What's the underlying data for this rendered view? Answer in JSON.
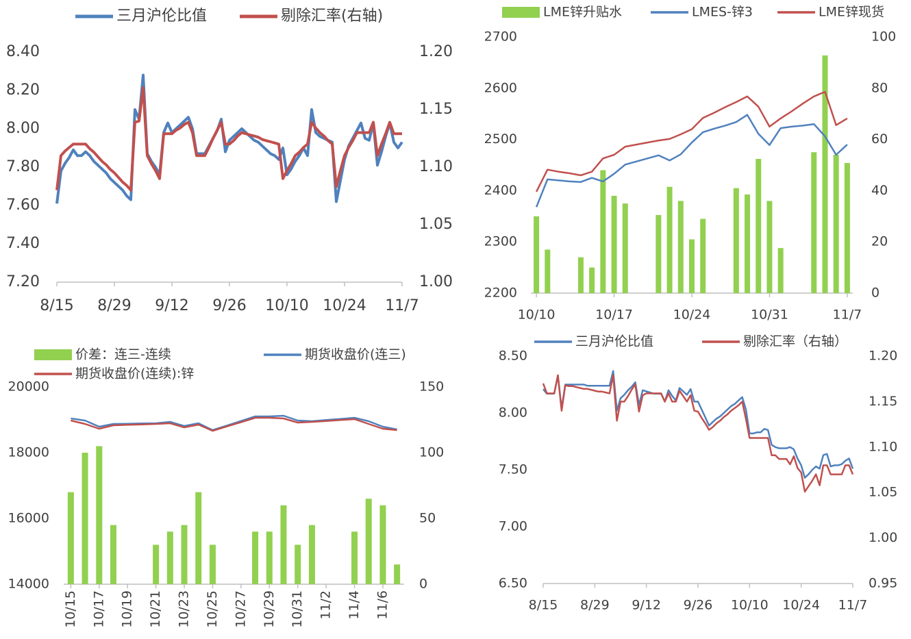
{
  "chart_data": [
    {
      "type": "line",
      "categories": [
        "8/15",
        null,
        null,
        null,
        null,
        null,
        null,
        null,
        null,
        null,
        null,
        null,
        null,
        null,
        "8/29",
        null,
        null,
        null,
        null,
        null,
        null,
        null,
        null,
        null,
        null,
        null,
        null,
        null,
        "9/12",
        null,
        null,
        null,
        null,
        null,
        null,
        null,
        null,
        null,
        null,
        null,
        null,
        null,
        "9/26",
        null,
        null,
        null,
        null,
        null,
        null,
        null,
        null,
        null,
        null,
        null,
        null,
        null,
        "10/10",
        null,
        null,
        null,
        null,
        null,
        null,
        null,
        null,
        null,
        null,
        null,
        null,
        null,
        "10/24",
        null,
        null,
        null,
        null,
        null,
        null,
        null,
        null,
        null,
        null,
        null,
        null,
        null,
        "11/7"
      ],
      "series": [
        {
          "name": "三月沪伦比值",
          "color": "#4f81bd",
          "type": "line",
          "values": [
            7.61,
            7.78,
            7.82,
            7.85,
            7.89,
            7.86,
            7.86,
            7.88,
            7.86,
            7.83,
            7.81,
            7.79,
            7.77,
            7.74,
            7.72,
            7.7,
            7.68,
            7.65,
            7.63,
            8.1,
            8.05,
            8.28,
            7.87,
            7.83,
            7.8,
            7.76,
            7.98,
            8.03,
            7.98,
            8.0,
            8.02,
            8.04,
            8.06,
            8.0,
            7.87,
            7.87,
            7.87,
            7.91,
            7.95,
            7.99,
            8.05,
            7.88,
            7.94,
            7.96,
            7.98,
            8.0,
            7.98,
            7.96,
            7.94,
            7.93,
            7.91,
            7.89,
            7.87,
            7.86,
            7.84,
            7.9,
            7.76,
            7.79,
            7.83,
            7.86,
            7.9,
            7.86,
            8.1,
            7.98,
            7.96,
            7.95,
            7.94,
            7.93,
            7.62,
            7.73,
            7.84,
            7.91,
            7.95,
            7.99,
            8.03,
            7.95,
            7.94,
            8.03,
            7.81,
            7.88,
            7.96,
            8.03,
            7.93,
            7.9,
            7.93
          ]
        },
        {
          "name": "剔除汇率(右轴)",
          "color": "#c0504d",
          "type": "line",
          "axis": "y2",
          "values": [
            1.08,
            1.11,
            1.114,
            1.117,
            1.12,
            1.12,
            1.12,
            1.12,
            1.116,
            1.113,
            1.109,
            1.105,
            1.102,
            1.098,
            1.095,
            1.091,
            1.087,
            1.084,
            1.08,
            1.139,
            1.14,
            1.169,
            1.11,
            1.103,
            1.097,
            1.09,
            1.129,
            1.129,
            1.129,
            1.132,
            1.134,
            1.137,
            1.139,
            1.13,
            1.11,
            1.11,
            1.11,
            1.117,
            1.125,
            1.132,
            1.139,
            1.12,
            1.12,
            1.123,
            1.127,
            1.13,
            1.129,
            1.128,
            1.127,
            1.126,
            1.124,
            1.123,
            1.122,
            1.121,
            1.12,
            1.09,
            1.097,
            1.103,
            1.11,
            1.113,
            1.117,
            1.12,
            1.139,
            1.134,
            1.13,
            1.127,
            1.123,
            1.12,
            1.083,
            1.097,
            1.11,
            1.117,
            1.123,
            1.13,
            1.13,
            1.13,
            1.13,
            1.139,
            1.11,
            1.12,
            1.129,
            1.139,
            1.129,
            1.129,
            1.129
          ]
        }
      ],
      "ylim": [
        7.2,
        8.4
      ],
      "yticks": [
        {
          "value": 7.2,
          "label": "7.20"
        },
        {
          "value": 7.4,
          "label": "7.40"
        },
        {
          "value": 7.6,
          "label": "7.60"
        },
        {
          "value": 7.8,
          "label": "7.80"
        },
        {
          "value": 8,
          "label": "8.00"
        },
        {
          "value": 8.2,
          "label": "8.20"
        },
        {
          "value": 8.4,
          "label": "8.40"
        }
      ],
      "y2lim": [
        1,
        1.2
      ],
      "y2ticks": [
        {
          "value": 1,
          "label": "1.00"
        },
        1.05,
        {
          "value": 1.1,
          "label": "1.10"
        },
        1.15,
        {
          "value": 1.2,
          "label": "1.20"
        }
      ]
    },
    {
      "type": "combo",
      "categories": [
        "10/10",
        null,
        null,
        null,
        null,
        null,
        null,
        "10/17",
        null,
        null,
        null,
        null,
        null,
        null,
        "10/24",
        null,
        null,
        null,
        null,
        null,
        null,
        "10/31",
        null,
        null,
        null,
        null,
        null,
        null,
        "11/7"
      ],
      "series": [
        {
          "name": "LME锌升贴水",
          "color": "#92d050",
          "type": "bar",
          "axis": "y2",
          "values": [
            30,
            17,
            null,
            null,
            14,
            10,
            48,
            38,
            35,
            null,
            null,
            30.5,
            41.5,
            36,
            21,
            29,
            null,
            null,
            41,
            38.5,
            52.4,
            36,
            17.6,
            null,
            null,
            55,
            92.8,
            54,
            50.8
          ]
        },
        {
          "name": "LMES-锌3",
          "color": "#4f81bd",
          "type": "line",
          "values": [
            2368,
            2422,
            2420,
            2418,
            2417,
            2425,
            2418,
            2433,
            2451,
            2457,
            2463,
            2469,
            2459,
            2471,
            2494,
            2514,
            2521,
            2527,
            2534,
            2548,
            2511,
            2489,
            2522,
            2525,
            2527,
            2530,
            2506,
            2470,
            2490
          ]
        },
        {
          "name": "LME锌现货",
          "color": "#c0504d",
          "type": "line",
          "values": [
            2398,
            2441,
            2437,
            2434,
            2430,
            2437,
            2463,
            2470,
            2486,
            2490,
            2494,
            2498,
            2501,
            2510,
            2520,
            2542,
            2552,
            2563,
            2573,
            2584,
            2564,
            2525,
            2541,
            2555,
            2570,
            2584,
            2593,
            2528,
            2541
          ]
        }
      ],
      "ylim": [
        2200,
        2700
      ],
      "yticks": [
        2200,
        2300,
        2400,
        2500,
        2600,
        2700
      ],
      "y2lim": [
        0,
        100
      ],
      "y2ticks": [
        0,
        20,
        40,
        60,
        80,
        100
      ]
    },
    {
      "type": "combo",
      "categories": [
        "10/15",
        null,
        "10/17",
        null,
        "10/19",
        null,
        "10/21",
        null,
        "10/23",
        null,
        "10/25",
        null,
        "10/27",
        null,
        "10/29",
        null,
        "10/31",
        null,
        "11/2",
        null,
        "11/4",
        null,
        "11/6",
        null
      ],
      "series": [
        {
          "name": "价差：连三-连续",
          "color": "#92d050",
          "type": "bar",
          "axis": "y2",
          "values": [
            70,
            100,
            105,
            45,
            null,
            null,
            30,
            40,
            45,
            70,
            30,
            null,
            null,
            40,
            40,
            60,
            30,
            45,
            null,
            null,
            40,
            65,
            60,
            15
          ]
        },
        {
          "name": "期货收盘价(连三)",
          "color": "#4f81bd",
          "type": "line",
          "values": [
            19042,
            18979,
            18792,
            18875,
            18882,
            18889,
            18896,
            18937,
            18812,
            18896,
            18687,
            18826,
            18965,
            19104,
            19104,
            19125,
            18979,
            18958,
            18993,
            19028,
            19062,
            18958,
            18792,
            18708
          ]
        },
        {
          "name": "期货收盘价(连续):锌",
          "color": "#c0504d",
          "type": "line",
          "values": [
            18979,
            18875,
            18729,
            18833,
            18847,
            18861,
            18875,
            18896,
            18771,
            18854,
            18667,
            18798,
            18930,
            19062,
            19062,
            19042,
            18917,
            18937,
            18965,
            18993,
            19021,
            18875,
            18729,
            18687
          ]
        }
      ],
      "ylim": [
        14000,
        20000
      ],
      "yticks": [
        14000,
        16000,
        18000,
        20000
      ],
      "y2lim": [
        0,
        150
      ],
      "y2ticks": [
        0,
        50,
        100,
        150
      ]
    },
    {
      "type": "line",
      "categories": [
        "8/15",
        null,
        null,
        null,
        null,
        null,
        null,
        null,
        null,
        null,
        null,
        null,
        null,
        null,
        "8/29",
        null,
        null,
        null,
        null,
        null,
        null,
        null,
        null,
        null,
        null,
        null,
        null,
        null,
        "9/12",
        null,
        null,
        null,
        null,
        null,
        null,
        null,
        null,
        null,
        null,
        null,
        null,
        null,
        "9/26",
        null,
        null,
        null,
        null,
        null,
        null,
        null,
        null,
        null,
        null,
        null,
        null,
        null,
        "10/10",
        null,
        null,
        null,
        null,
        null,
        null,
        null,
        null,
        null,
        null,
        null,
        null,
        null,
        "10/24",
        null,
        null,
        null,
        null,
        null,
        null,
        null,
        null,
        null,
        null,
        null,
        null,
        null,
        "11/7"
      ],
      "series": [
        {
          "name": "三月沪伦比值",
          "color": "#4f81bd",
          "type": "line",
          "values": [
            8.21,
            8.17,
            8.17,
            8.17,
            8.33,
            8.04,
            8.25,
            8.25,
            8.25,
            8.25,
            8.25,
            8.25,
            8.24,
            8.24,
            8.24,
            8.24,
            8.24,
            8.24,
            8.24,
            8.37,
            8.02,
            8.13,
            8.16,
            8.2,
            8.23,
            8.27,
            8.07,
            8.2,
            8.19,
            8.18,
            8.17,
            8.17,
            8.17,
            8.1,
            8.2,
            8.15,
            8.11,
            8.22,
            8.19,
            8.16,
            8.21,
            8.1,
            8.1,
            8.03,
            7.96,
            7.89,
            7.92,
            7.95,
            7.97,
            8,
            8.03,
            8.06,
            8.08,
            8.11,
            8.14,
            8.03,
            7.82,
            7.82,
            7.83,
            7.83,
            7.86,
            7.85,
            7.72,
            7.7,
            7.69,
            7.69,
            7.69,
            7.7,
            7.68,
            7.6,
            7.54,
            7.43,
            7.46,
            7.5,
            7.53,
            7.51,
            7.63,
            7.64,
            7.53,
            7.54,
            7.54,
            7.55,
            7.58,
            7.6,
            7.51
          ]
        },
        {
          "name": "剔除汇率（右轴）",
          "color": "#c0504d",
          "type": "line",
          "axis": "y2",
          "values": [
            1.17,
            1.159,
            1.159,
            1.159,
            1.179,
            1.14,
            1.168,
            1.167,
            1.167,
            1.166,
            1.165,
            1.164,
            1.164,
            1.163,
            1.162,
            1.161,
            1.161,
            1.16,
            1.159,
            1.179,
            1.129,
            1.15,
            1.15,
            1.156,
            1.163,
            1.169,
            1.139,
            1.157,
            1.159,
            1.159,
            1.159,
            1.159,
            1.159,
            1.15,
            1.159,
            1.15,
            1.15,
            1.162,
            1.156,
            1.15,
            1.157,
            1.14,
            1.139,
            1.132,
            1.126,
            1.119,
            1.122,
            1.126,
            1.129,
            1.133,
            1.136,
            1.14,
            1.143,
            1.146,
            1.15,
            1.131,
            1.11,
            1.11,
            1.11,
            1.11,
            1.11,
            1.11,
            1.091,
            1.091,
            1.087,
            1.087,
            1.087,
            1.081,
            1.09,
            1.077,
            1.072,
            1.051,
            1.057,
            1.063,
            1.07,
            1.058,
            1.08,
            1.08,
            1.07,
            1.07,
            1.07,
            1.07,
            1.08,
            1.08,
            1.07
          ]
        }
      ],
      "ylim": [
        6.5,
        8.5
      ],
      "yticks": [
        {
          "value": 6.5,
          "label": "6.50"
        },
        {
          "value": 7,
          "label": "7.00"
        },
        {
          "value": 7.5,
          "label": "7.50"
        },
        {
          "value": 8,
          "label": "8.00"
        },
        {
          "value": 8.5,
          "label": "8.50"
        }
      ],
      "y2lim": [
        0.95,
        1.2
      ],
      "y2ticks": [
        0.95,
        {
          "value": 1,
          "label": "1.00"
        },
        1.05,
        {
          "value": 1.1,
          "label": "1.10"
        },
        1.15,
        {
          "value": 1.2,
          "label": "1.20"
        }
      ]
    }
  ]
}
